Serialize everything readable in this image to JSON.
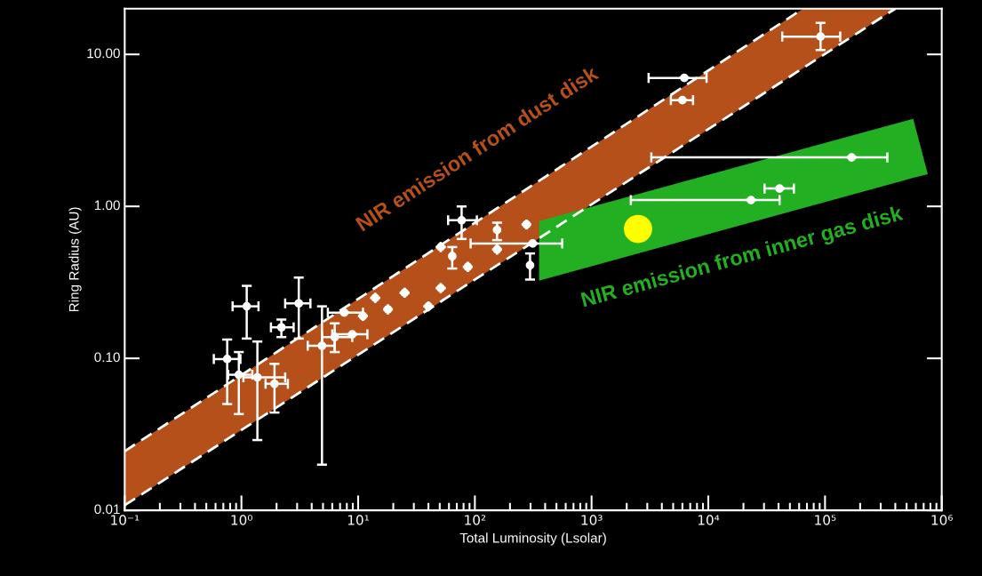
{
  "chart_data": {
    "type": "scatter",
    "xlabel": "Total Luminosity (Lsolar)",
    "ylabel": "Ring Radius (AU)",
    "log": "xy",
    "grid": false,
    "xlim": [
      0.1,
      1000000
    ],
    "ylim": [
      0.01,
      20
    ],
    "xticks": [
      {
        "value": 0.1,
        "label": "10⁻¹"
      },
      {
        "value": 1,
        "label": "10⁰"
      },
      {
        "value": 10,
        "label": "10¹"
      },
      {
        "value": 100,
        "label": "10²"
      },
      {
        "value": 1000,
        "label": "10³"
      },
      {
        "value": 10000,
        "label": "10⁴"
      },
      {
        "value": 100000,
        "label": "10⁵"
      },
      {
        "value": 1000000,
        "label": "10⁶"
      }
    ],
    "yticks": [
      {
        "value": 0.01,
        "label": "0.01"
      },
      {
        "value": 0.1,
        "label": "0.10"
      },
      {
        "value": 1,
        "label": "1.00"
      },
      {
        "value": 10,
        "label": "10.00"
      }
    ],
    "series": [
      {
        "type": "area",
        "name": "NIR emission from dust disk",
        "color": "#b5501a",
        "x": [
          0.1,
          65000,
          400000
        ],
        "values": [
          null,
          null,
          null
        ],
        "upper": [
          0.0245,
          20,
          20
        ],
        "lower": [
          0.0108,
          8.1,
          20
        ]
      },
      {
        "type": "line",
        "color": "#ffffff",
        "line_style": "dashed",
        "x": [
          0.1,
          65000
        ],
        "values": [
          0.0245,
          20
        ]
      },
      {
        "type": "line",
        "color": "#ffffff",
        "line_style": "dashed",
        "x": [
          0.1,
          400000
        ],
        "values": [
          0.0108,
          20
        ]
      },
      {
        "type": "area",
        "name": "NIR emission from inner gas disk",
        "color": "#22b022",
        "x": [
          355,
          570000,
          760000
        ],
        "values": [
          null,
          null,
          null
        ],
        "upper": [
          0.8,
          3.77,
          1.63
        ],
        "lower": [
          0.325,
          1.54,
          1.63
        ]
      },
      {
        "color": "#ffffff",
        "marker": "circle",
        "x": [
          1.11,
          3.1,
          2.2,
          0.755,
          0.95,
          1.37,
          1.92,
          4.9,
          6.3,
          8.9,
          7.6,
          11,
          14,
          18,
          25,
          40,
          51,
          77,
          64,
          87,
          51,
          155,
          277,
          313,
          297,
          155,
          91600,
          6230,
          6000,
          169000,
          23200,
          40800
        ],
        "values": [
          0.22,
          0.23,
          0.16,
          0.099,
          0.078,
          0.075,
          0.068,
          0.121,
          0.138,
          0.144,
          0.2,
          0.19,
          0.25,
          0.21,
          0.27,
          0.22,
          0.29,
          0.81,
          0.47,
          0.4,
          0.54,
          0.7,
          0.76,
          0.57,
          0.41,
          0.52,
          13.1,
          7.0,
          5.0,
          2.1,
          1.1,
          1.31
        ],
        "errors": [
          [
            0.135,
            0.3
          ],
          [
            0.135,
            0.34
          ],
          [
            0.138,
            0.18
          ],
          [
            0.05,
            0.133
          ],
          [
            0.043,
            0.11
          ],
          [
            0.029,
            0.129
          ],
          [
            0.044,
            0.092
          ],
          [
            0.02,
            0.22
          ],
          [
            0.11,
            0.17
          ],
          null,
          null,
          null,
          null,
          null,
          null,
          null,
          null,
          [
            0.61,
            1.0
          ],
          [
            0.39,
            0.54
          ],
          null,
          null,
          [
            0.6,
            0.78
          ],
          null,
          null,
          [
            0.33,
            0.49
          ],
          null,
          [
            10.7,
            16.1
          ],
          null,
          null,
          null,
          null,
          null
        ],
        "xerrors": [
          [
            0.84,
            1.4
          ],
          [
            2.37,
            3.9
          ],
          [
            1.79,
            2.8
          ],
          [
            0.58,
            0.98
          ],
          [
            0.77,
            1.24
          ],
          [
            1.04,
            2.37
          ],
          [
            1.61,
            2.5
          ],
          [
            3.7,
            6.3
          ],
          [
            4.9,
            8.9
          ],
          [
            6.0,
            12
          ],
          [
            5.5,
            11
          ],
          null,
          null,
          null,
          null,
          null,
          null,
          [
            59,
            104
          ],
          null,
          null,
          null,
          null,
          null,
          [
            92,
            560
          ],
          null,
          null,
          [
            43000,
            135000
          ],
          [
            3080,
            9660
          ],
          [
            4780,
            7400
          ],
          [
            3250,
            342000
          ],
          [
            2170,
            40800
          ],
          [
            30300,
            54100
          ]
        ]
      },
      {
        "color": "#ffff00",
        "marker": "circle",
        "x": [
          2500
        ],
        "values": [
          0.71
        ]
      }
    ]
  }
}
